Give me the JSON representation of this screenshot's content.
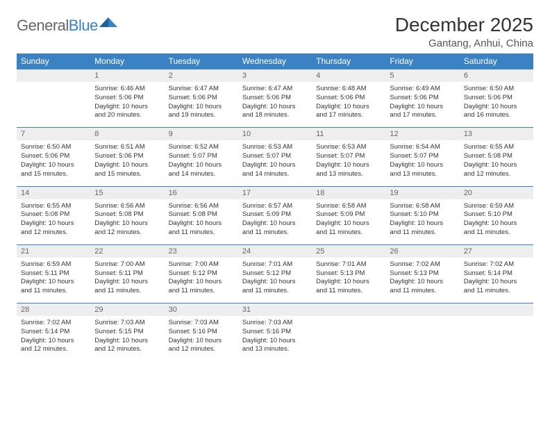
{
  "brand": {
    "part1": "General",
    "part2": "Blue"
  },
  "title": "December 2025",
  "location": "Gantang, Anhui, China",
  "colors": {
    "header_bg": "#3b82c4",
    "header_text": "#ffffff",
    "daynum_bg": "#eeeeee",
    "daynum_text": "#666666",
    "border": "#3b82c4",
    "body_text": "#333333",
    "page_bg": "#ffffff"
  },
  "typography": {
    "title_fontsize": 28,
    "location_fontsize": 15,
    "dayhead_fontsize": 12,
    "daynum_fontsize": 11,
    "detail_fontsize": 9.5
  },
  "dayNames": [
    "Sunday",
    "Monday",
    "Tuesday",
    "Wednesday",
    "Thursday",
    "Friday",
    "Saturday"
  ],
  "weeks": [
    [
      null,
      {
        "n": "1",
        "sr": "6:46 AM",
        "ss": "5:06 PM",
        "dl": "10 hours and 20 minutes."
      },
      {
        "n": "2",
        "sr": "6:47 AM",
        "ss": "5:06 PM",
        "dl": "10 hours and 19 minutes."
      },
      {
        "n": "3",
        "sr": "6:47 AM",
        "ss": "5:06 PM",
        "dl": "10 hours and 18 minutes."
      },
      {
        "n": "4",
        "sr": "6:48 AM",
        "ss": "5:06 PM",
        "dl": "10 hours and 17 minutes."
      },
      {
        "n": "5",
        "sr": "6:49 AM",
        "ss": "5:06 PM",
        "dl": "10 hours and 17 minutes."
      },
      {
        "n": "6",
        "sr": "6:50 AM",
        "ss": "5:06 PM",
        "dl": "10 hours and 16 minutes."
      }
    ],
    [
      {
        "n": "7",
        "sr": "6:50 AM",
        "ss": "5:06 PM",
        "dl": "10 hours and 15 minutes."
      },
      {
        "n": "8",
        "sr": "6:51 AM",
        "ss": "5:06 PM",
        "dl": "10 hours and 15 minutes."
      },
      {
        "n": "9",
        "sr": "6:52 AM",
        "ss": "5:07 PM",
        "dl": "10 hours and 14 minutes."
      },
      {
        "n": "10",
        "sr": "6:53 AM",
        "ss": "5:07 PM",
        "dl": "10 hours and 14 minutes."
      },
      {
        "n": "11",
        "sr": "6:53 AM",
        "ss": "5:07 PM",
        "dl": "10 hours and 13 minutes."
      },
      {
        "n": "12",
        "sr": "6:54 AM",
        "ss": "5:07 PM",
        "dl": "10 hours and 13 minutes."
      },
      {
        "n": "13",
        "sr": "6:55 AM",
        "ss": "5:08 PM",
        "dl": "10 hours and 12 minutes."
      }
    ],
    [
      {
        "n": "14",
        "sr": "6:55 AM",
        "ss": "5:08 PM",
        "dl": "10 hours and 12 minutes."
      },
      {
        "n": "15",
        "sr": "6:56 AM",
        "ss": "5:08 PM",
        "dl": "10 hours and 12 minutes."
      },
      {
        "n": "16",
        "sr": "6:56 AM",
        "ss": "5:08 PM",
        "dl": "10 hours and 11 minutes."
      },
      {
        "n": "17",
        "sr": "6:57 AM",
        "ss": "5:09 PM",
        "dl": "10 hours and 11 minutes."
      },
      {
        "n": "18",
        "sr": "6:58 AM",
        "ss": "5:09 PM",
        "dl": "10 hours and 11 minutes."
      },
      {
        "n": "19",
        "sr": "6:58 AM",
        "ss": "5:10 PM",
        "dl": "10 hours and 11 minutes."
      },
      {
        "n": "20",
        "sr": "6:59 AM",
        "ss": "5:10 PM",
        "dl": "10 hours and 11 minutes."
      }
    ],
    [
      {
        "n": "21",
        "sr": "6:59 AM",
        "ss": "5:11 PM",
        "dl": "10 hours and 11 minutes."
      },
      {
        "n": "22",
        "sr": "7:00 AM",
        "ss": "5:11 PM",
        "dl": "10 hours and 11 minutes."
      },
      {
        "n": "23",
        "sr": "7:00 AM",
        "ss": "5:12 PM",
        "dl": "10 hours and 11 minutes."
      },
      {
        "n": "24",
        "sr": "7:01 AM",
        "ss": "5:12 PM",
        "dl": "10 hours and 11 minutes."
      },
      {
        "n": "25",
        "sr": "7:01 AM",
        "ss": "5:13 PM",
        "dl": "10 hours and 11 minutes."
      },
      {
        "n": "26",
        "sr": "7:02 AM",
        "ss": "5:13 PM",
        "dl": "10 hours and 11 minutes."
      },
      {
        "n": "27",
        "sr": "7:02 AM",
        "ss": "5:14 PM",
        "dl": "10 hours and 11 minutes."
      }
    ],
    [
      {
        "n": "28",
        "sr": "7:02 AM",
        "ss": "5:14 PM",
        "dl": "10 hours and 12 minutes."
      },
      {
        "n": "29",
        "sr": "7:03 AM",
        "ss": "5:15 PM",
        "dl": "10 hours and 12 minutes."
      },
      {
        "n": "30",
        "sr": "7:03 AM",
        "ss": "5:16 PM",
        "dl": "10 hours and 12 minutes."
      },
      {
        "n": "31",
        "sr": "7:03 AM",
        "ss": "5:16 PM",
        "dl": "10 hours and 13 minutes."
      },
      null,
      null,
      null
    ]
  ],
  "labels": {
    "sunrise": "Sunrise: ",
    "sunset": "Sunset: ",
    "daylight": "Daylight: "
  }
}
